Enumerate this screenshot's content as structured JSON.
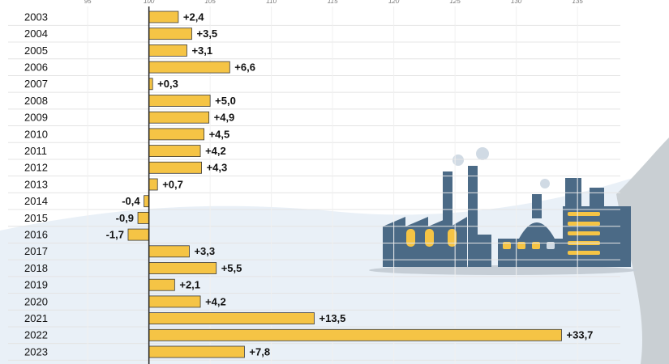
{
  "chart_data": {
    "type": "bar",
    "orientation": "horizontal",
    "baseline": 100,
    "categories": [
      "2003",
      "2004",
      "2005",
      "2006",
      "2007",
      "2008",
      "2009",
      "2010",
      "2011",
      "2012",
      "2013",
      "2014",
      "2015",
      "2016",
      "2017",
      "2018",
      "2019",
      "2020",
      "2021",
      "2022",
      "2023"
    ],
    "values": [
      2.4,
      3.5,
      3.1,
      6.6,
      0.3,
      5.0,
      4.9,
      4.5,
      4.2,
      4.3,
      0.7,
      -0.4,
      -0.9,
      -1.7,
      3.3,
      5.5,
      2.1,
      4.2,
      13.5,
      33.7,
      7.8
    ],
    "value_labels": [
      "+2,4",
      "+3,5",
      "+3,1",
      "+6,6",
      "+0,3",
      "+5,0",
      "+4,9",
      "+4,5",
      "+4,2",
      "+4,3",
      "+0,7",
      "-0,4",
      "-0,9",
      "-1,7",
      "+3,3",
      "+5,5",
      "+2,1",
      "+4,2",
      "+13,5",
      "+33,7",
      "+7,8"
    ],
    "color": "#f5c445",
    "xlim": [
      88.5,
      138.5
    ],
    "xticks": [
      95,
      100,
      105,
      110,
      115,
      120,
      125,
      130,
      135
    ],
    "grid": true
  }
}
